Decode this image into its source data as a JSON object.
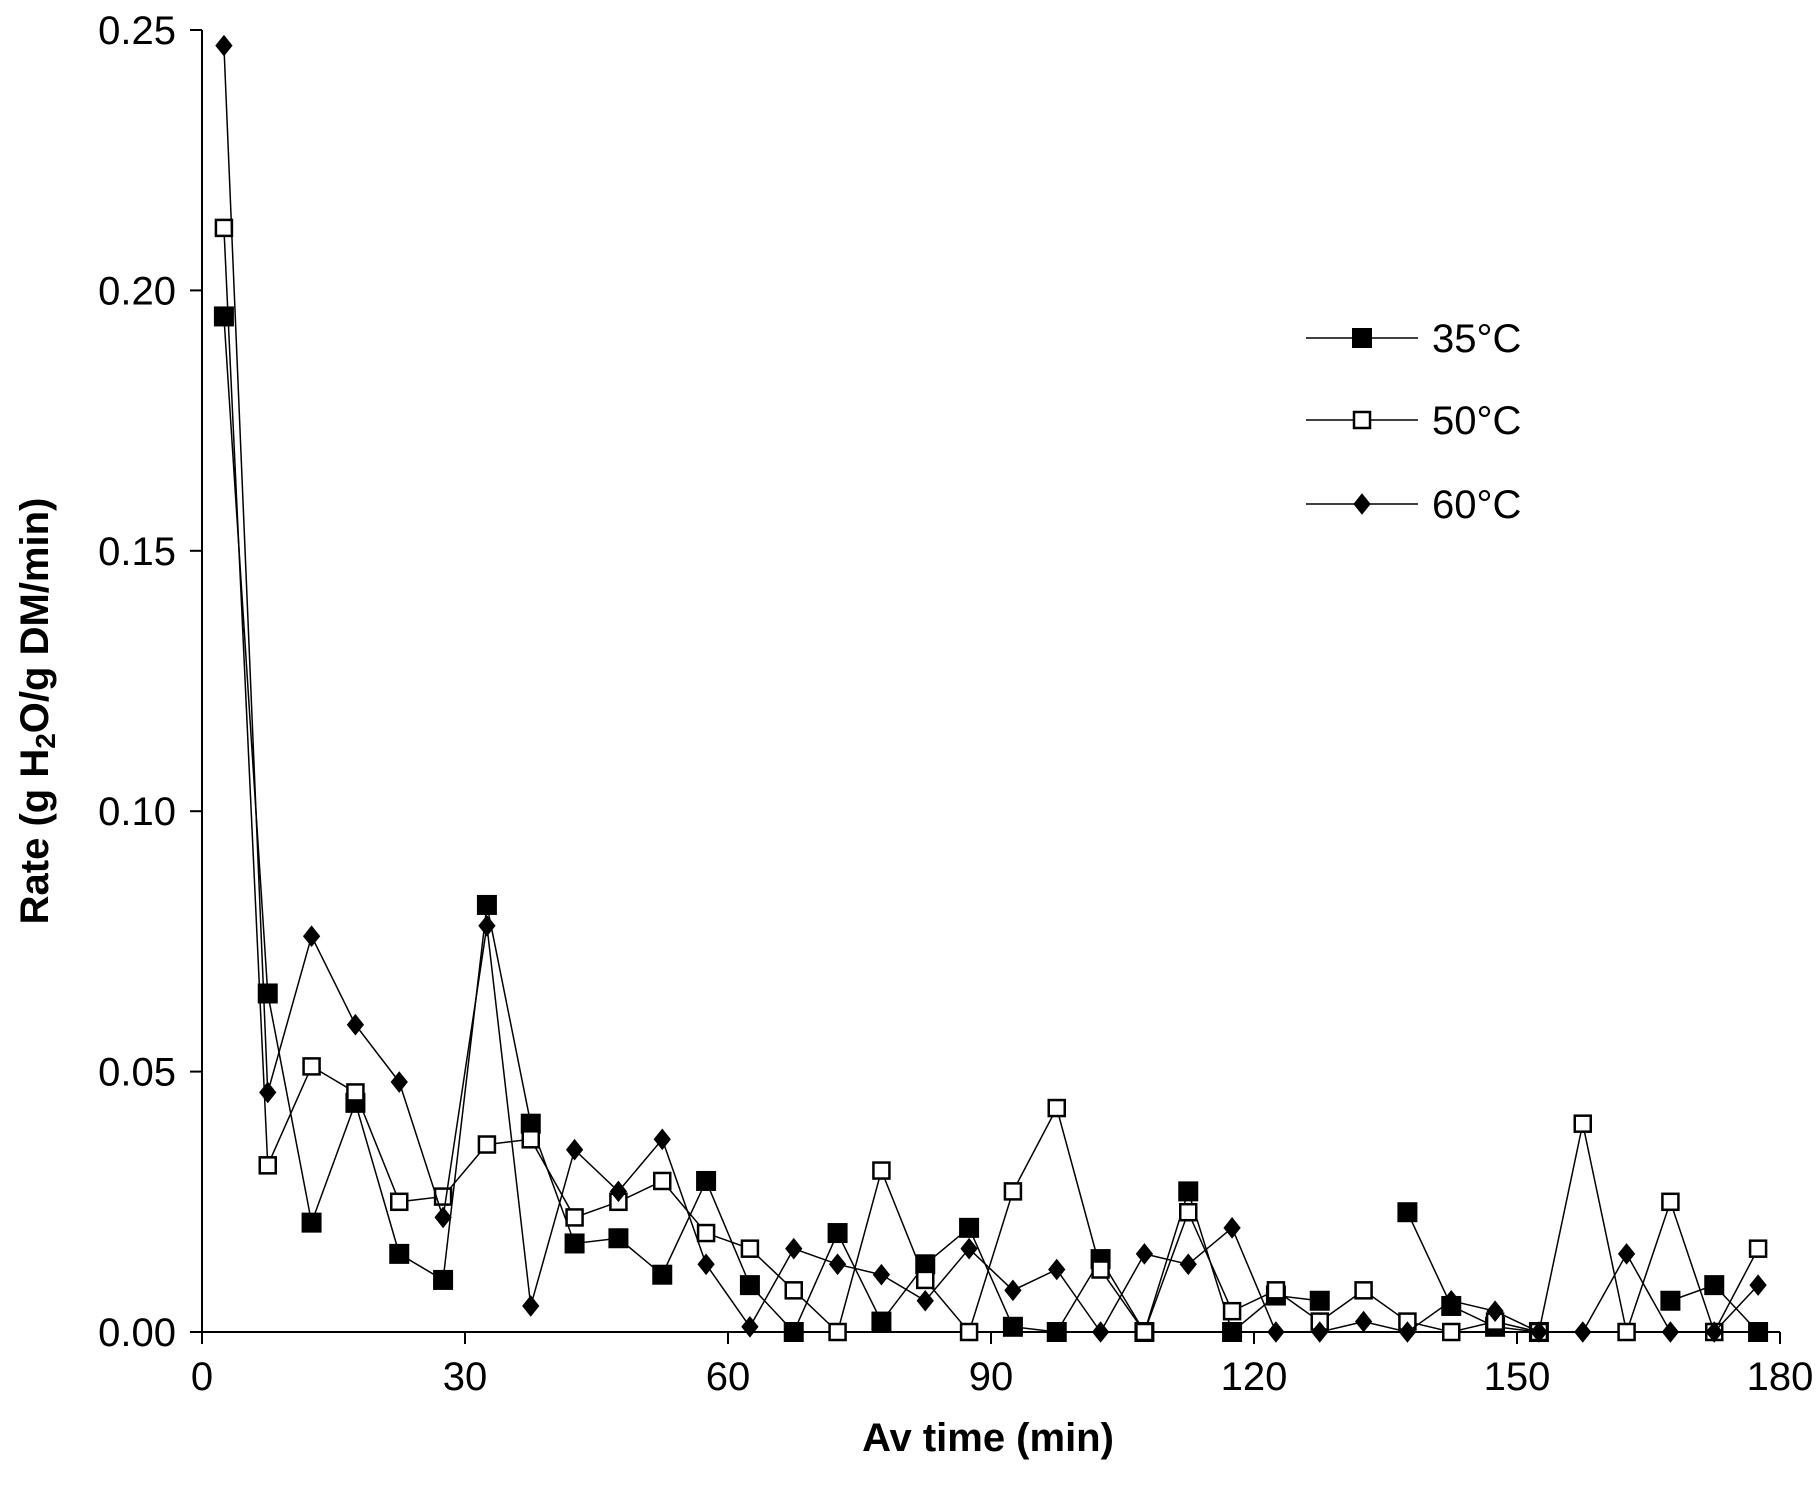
{
  "chart_data": {
    "type": "line",
    "title": "",
    "xlabel": "Av time (min)",
    "ylabel_parts": [
      "Rate (g H",
      "2",
      "O/g DM/min)"
    ],
    "xlim": [
      0,
      180
    ],
    "ylim": [
      0,
      0.25
    ],
    "xticks": [
      0,
      30,
      60,
      90,
      120,
      150,
      180
    ],
    "yticks": [
      0.0,
      0.05,
      0.1,
      0.15,
      0.2,
      0.25
    ],
    "xtick_labels": [
      "0",
      "30",
      "60",
      "90",
      "120",
      "150",
      "180"
    ],
    "ytick_labels": [
      "0.00",
      "0.05",
      "0.10",
      "0.15",
      "0.20",
      "0.25"
    ],
    "grid": false,
    "legend_position": "top-right",
    "x": [
      2.5,
      7.5,
      12.5,
      17.5,
      22.5,
      27.5,
      32.5,
      37.5,
      42.5,
      47.5,
      52.5,
      57.5,
      62.5,
      67.5,
      72.5,
      77.5,
      82.5,
      87.5,
      92.5,
      97.5,
      102.5,
      107.5,
      112.5,
      117.5,
      122.5,
      127.5,
      132.5,
      137.5,
      142.5,
      147.5,
      152.5,
      157.5,
      162.5,
      167.5,
      172.5,
      177.5
    ],
    "series": [
      {
        "name": "35°C",
        "marker": "filled-square",
        "color": "#000000",
        "values": [
          0.195,
          0.065,
          0.021,
          0.044,
          0.015,
          0.01,
          0.082,
          0.04,
          0.017,
          0.018,
          0.011,
          0.029,
          0.009,
          0.0,
          0.019,
          0.002,
          0.013,
          0.02,
          0.001,
          0.0,
          0.014,
          0.0,
          0.027,
          0.0,
          0.007,
          0.006,
          null,
          0.023,
          0.005,
          0.001,
          0.0,
          null,
          null,
          0.006,
          0.009,
          0.0
        ]
      },
      {
        "name": "50°C",
        "marker": "open-square",
        "color": "#000000",
        "values": [
          0.212,
          0.032,
          0.051,
          0.046,
          0.025,
          0.026,
          0.036,
          0.037,
          0.022,
          0.025,
          0.029,
          0.019,
          0.016,
          0.008,
          0.0,
          0.031,
          0.01,
          0.0,
          0.027,
          0.043,
          0.012,
          0.0,
          0.023,
          0.004,
          0.008,
          0.002,
          0.008,
          0.002,
          0.0,
          0.002,
          0.0,
          0.04,
          0.0,
          0.025,
          0.0,
          0.016
        ]
      },
      {
        "name": "60°C",
        "marker": "filled-diamond",
        "color": "#000000",
        "values": [
          0.247,
          0.046,
          0.076,
          0.059,
          0.048,
          0.022,
          0.078,
          0.005,
          0.035,
          0.027,
          0.037,
          0.013,
          0.001,
          0.016,
          0.013,
          0.011,
          0.006,
          0.016,
          0.008,
          0.012,
          0.0,
          0.015,
          0.013,
          0.02,
          0.0,
          0.0,
          0.002,
          0.0,
          0.006,
          0.004,
          0.0,
          0.0,
          0.015,
          0.0,
          0.0,
          0.009
        ]
      }
    ]
  }
}
